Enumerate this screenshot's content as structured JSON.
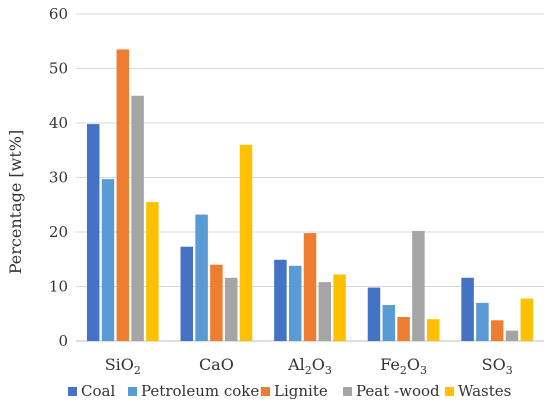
{
  "chart_data": {
    "type": "bar",
    "title": "",
    "xlabel": "",
    "ylabel": "Percentage [wt%]",
    "ylim": [
      0,
      60
    ],
    "yticks": [
      0,
      10,
      20,
      30,
      40,
      50,
      60
    ],
    "grid": "horizontal",
    "legend_position": "bottom",
    "categories": [
      {
        "base": "SiO",
        "parts": [
          [
            "SiO",
            false
          ],
          [
            "2",
            true
          ]
        ]
      },
      {
        "base": "CaO",
        "parts": [
          [
            "CaO",
            false
          ]
        ]
      },
      {
        "base": "Al2O3",
        "parts": [
          [
            "Al",
            false
          ],
          [
            "2",
            true
          ],
          [
            "O",
            false
          ],
          [
            "3",
            true
          ]
        ]
      },
      {
        "base": "Fe2O3",
        "parts": [
          [
            "Fe",
            false
          ],
          [
            "2",
            true
          ],
          [
            "O",
            false
          ],
          [
            "3",
            true
          ]
        ]
      },
      {
        "base": "SO3",
        "parts": [
          [
            "SO",
            false
          ],
          [
            "3",
            true
          ]
        ]
      }
    ],
    "category_labels": [
      "SiO2",
      "CaO",
      "Al2O3",
      "Fe2O3",
      "SO3"
    ],
    "series": [
      {
        "name": "Coal",
        "color": "#4472C4",
        "values": [
          39.8,
          17.3,
          14.9,
          9.8,
          11.6
        ]
      },
      {
        "name": "Petroleum coke",
        "color": "#5B9BD5",
        "values": [
          29.7,
          23.2,
          13.8,
          6.6,
          7.0
        ]
      },
      {
        "name": "Lignite",
        "color": "#ED7D31",
        "values": [
          53.5,
          14.0,
          19.8,
          4.4,
          3.8
        ]
      },
      {
        "name": "Peat -wood",
        "color": "#A5A5A5",
        "values": [
          45.0,
          11.6,
          10.8,
          20.2,
          1.9
        ]
      },
      {
        "name": "Wastes",
        "color": "#FFC000",
        "values": [
          25.5,
          36.0,
          12.2,
          4.0,
          7.8
        ]
      }
    ]
  }
}
